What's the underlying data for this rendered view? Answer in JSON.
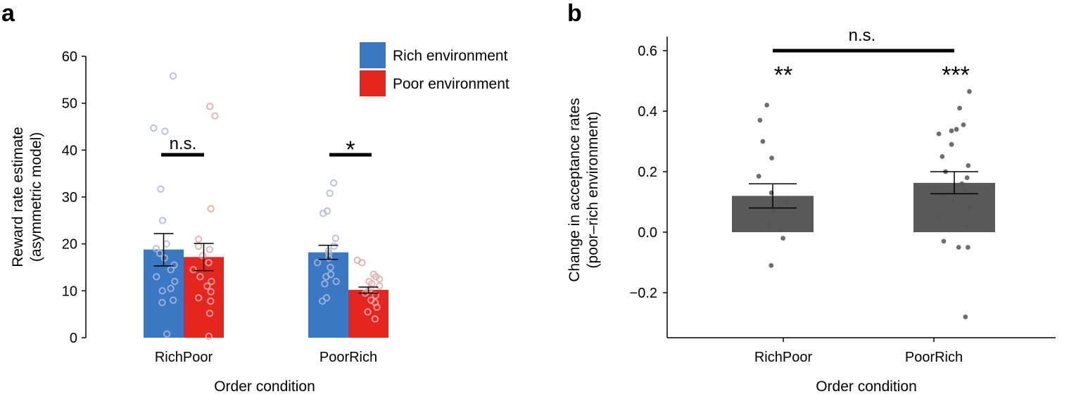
{
  "panel_a": {
    "letter": "a"
  },
  "panel_b": {
    "letter": "b"
  },
  "chart_data": [
    {
      "type": "bar",
      "panel": "a",
      "categories": [
        "RichPoor",
        "PoorRich"
      ],
      "xlabel": "Order condition",
      "ylabel_lines": [
        "Reward rate estimate",
        "(asymmetric model)"
      ],
      "ylim": [
        0,
        60
      ],
      "yticks": [
        0,
        10,
        20,
        30,
        40,
        50,
        60
      ],
      "legend_position": "top-right",
      "series": [
        {
          "name": "Rich environment",
          "color": "#3a78c3",
          "dot_color": "#aab8d8",
          "values": [
            18.8,
            18.2
          ],
          "error": [
            [
              15.3,
              22.2
            ],
            [
              16.7,
              19.7
            ]
          ],
          "points": [
            [
              55.8,
              44.7,
              44.0,
              31.7,
              25.0,
              20.0,
              19.0,
              18.0,
              17.0,
              15.5,
              14.5,
              13.0,
              12.0,
              10.5,
              10.0,
              8.0,
              7.5,
              0.8
            ],
            [
              33.0,
              30.8,
              27.0,
              26.5,
              21.2,
              19.5,
              18.5,
              18.0,
              17.0,
              16.0,
              15.0,
              13.5,
              13.0,
              12.0,
              11.5,
              8.5,
              7.8
            ]
          ]
        },
        {
          "name": "Poor environment",
          "color": "#e5261f",
          "dot_color": "#e0a8a8",
          "values": [
            17.2,
            10.2
          ],
          "error": [
            [
              14.3,
              20.1
            ],
            [
              9.5,
              10.8
            ]
          ],
          "points": [
            [
              49.3,
              47.3,
              27.5,
              21.0,
              19.5,
              18.8,
              17.5,
              16.0,
              14.5,
              13.0,
              12.0,
              11.0,
              9.8,
              8.5,
              7.8,
              5.2,
              0.3
            ],
            [
              16.5,
              16.0,
              13.5,
              13.0,
              12.5,
              12.0,
              11.5,
              11.0,
              10.5,
              10.0,
              9.5,
              9.0,
              8.0,
              7.5,
              6.5,
              5.5,
              4.0
            ]
          ]
        }
      ],
      "annotations": [
        {
          "category": "RichPoor",
          "label": "n.s.",
          "y": 39
        },
        {
          "category": "PoorRich",
          "label": "*",
          "y": 39
        }
      ]
    },
    {
      "type": "bar",
      "panel": "b",
      "categories": [
        "RichPoor",
        "PoorRich"
      ],
      "xlabel": "Order condition",
      "ylabel_lines": [
        "Change in acceptance rates",
        "(poor–rich environment)"
      ],
      "ylim": [
        -0.3,
        0.65
      ],
      "yticks": [
        -0.2,
        0.0,
        0.2,
        0.4,
        0.6
      ],
      "ytick_labels": [
        "−0.2",
        "0.0",
        "0.2",
        "0.4",
        "0.6"
      ],
      "series": [
        {
          "color": "#595959",
          "dot_color": "#555555",
          "values": [
            0.12,
            0.163
          ],
          "error": [
            [
              0.08,
              0.16
            ],
            [
              0.127,
              0.2
            ]
          ],
          "points": [
            [
              0.42,
              0.37,
              0.3,
              0.245,
              0.185,
              0.13,
              0.1,
              0.07,
              0.03,
              0.02,
              0.01,
              -0.02,
              -0.11
            ],
            [
              0.465,
              0.41,
              0.355,
              0.34,
              0.335,
              0.325,
              0.29,
              0.25,
              0.22,
              0.2,
              0.18,
              0.16,
              0.14,
              0.12,
              0.1,
              0.08,
              0.05,
              0.02,
              -0.03,
              -0.05,
              -0.05,
              -0.28
            ]
          ]
        }
      ],
      "significance": [
        "**",
        "***"
      ],
      "bracket_label": "n.s."
    }
  ]
}
